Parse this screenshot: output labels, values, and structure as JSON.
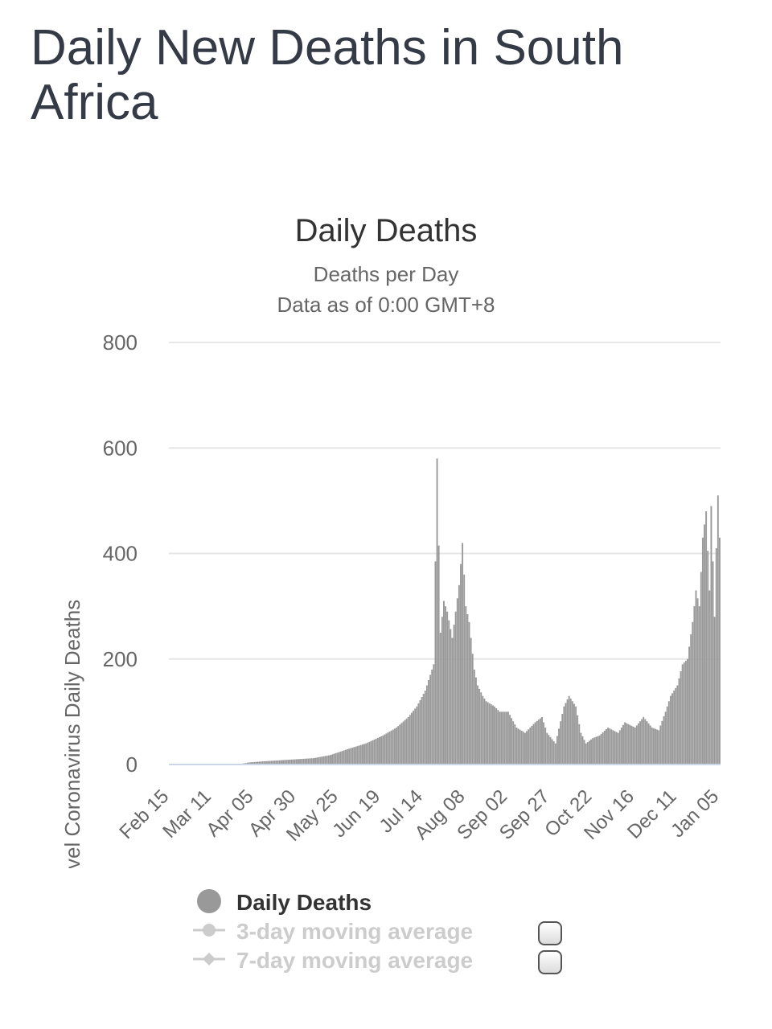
{
  "page": {
    "title": "Daily New Deaths in South Africa"
  },
  "legend": {
    "daily_label": "Daily Deaths",
    "ma3_label": "3-day moving average",
    "ma7_label": "7-day moving average"
  },
  "colors": {
    "bars": "#999999",
    "grid": "#e6e6e6",
    "axis_line": "#ccd6eb",
    "title": "#343a46"
  },
  "chart_data": {
    "type": "bar",
    "title": "Daily Deaths",
    "subtitle": [
      "Deaths per Day",
      "Data as of 0:00 GMT+8"
    ],
    "ylabel": "Novel Coronavirus Daily Deaths",
    "xlabel": "",
    "ylim": [
      0,
      800
    ],
    "y_ticks": [
      0,
      200,
      400,
      600,
      800
    ],
    "x_tick_labels": [
      "Feb 15",
      "Mar 11",
      "Apr 05",
      "Apr 30",
      "May 25",
      "Jun 19",
      "Jul 14",
      "Aug 08",
      "Sep 02",
      "Sep 27",
      "Oct 22",
      "Nov 16",
      "Dec 11",
      "Jan 05"
    ],
    "x_tick_dates": [
      "2020-02-15",
      "2020-03-11",
      "2020-04-05",
      "2020-04-30",
      "2020-05-25",
      "2020-06-19",
      "2020-07-14",
      "2020-08-08",
      "2020-09-02",
      "2020-09-27",
      "2020-10-22",
      "2020-11-16",
      "2020-12-11",
      "2021-01-05"
    ],
    "x_range": [
      "2020-02-15",
      "2021-01-05"
    ],
    "grid": true,
    "legend_position": "bottom",
    "series": [
      {
        "name": "Daily Deaths",
        "period_start": "2020-02-15",
        "period_end": "2021-01-05",
        "anchor_dates": [
          "2020-02-15",
          "2020-03-26",
          "2020-04-02",
          "2020-04-10",
          "2020-04-20",
          "2020-04-30",
          "2020-05-10",
          "2020-05-20",
          "2020-05-31",
          "2020-06-10",
          "2020-06-20",
          "2020-06-28",
          "2020-07-05",
          "2020-07-10",
          "2020-07-15",
          "2020-07-20",
          "2020-07-22",
          "2020-07-24",
          "2020-07-26",
          "2020-07-28",
          "2020-07-31",
          "2020-08-04",
          "2020-08-06",
          "2020-08-08",
          "2020-08-10",
          "2020-08-13",
          "2020-08-15",
          "2020-08-18",
          "2020-08-20",
          "2020-08-25",
          "2020-08-28",
          "2020-09-02",
          "2020-09-07",
          "2020-09-12",
          "2020-09-18",
          "2020-09-22",
          "2020-09-25",
          "2020-09-30",
          "2020-10-05",
          "2020-10-08",
          "2020-10-12",
          "2020-10-15",
          "2020-10-18",
          "2020-10-22",
          "2020-10-26",
          "2020-10-31",
          "2020-11-06",
          "2020-11-10",
          "2020-11-16",
          "2020-11-21",
          "2020-11-26",
          "2020-11-30",
          "2020-12-04",
          "2020-12-07",
          "2020-12-11",
          "2020-12-14",
          "2020-12-17",
          "2020-12-20",
          "2020-12-22",
          "2020-12-24",
          "2020-12-26",
          "2020-12-28",
          "2020-12-30",
          "2020-12-31",
          "2021-01-02",
          "2021-01-03",
          "2021-01-04",
          "2021-01-05"
        ],
        "anchor_values": [
          0,
          0,
          4,
          6,
          8,
          10,
          12,
          18,
          30,
          40,
          55,
          70,
          90,
          110,
          140,
          190,
          580,
          250,
          310,
          290,
          240,
          340,
          420,
          300,
          270,
          180,
          150,
          130,
          120,
          110,
          100,
          100,
          70,
          60,
          80,
          90,
          60,
          40,
          110,
          130,
          110,
          60,
          40,
          50,
          55,
          70,
          60,
          80,
          70,
          90,
          70,
          65,
          100,
          130,
          150,
          190,
          200,
          270,
          330,
          300,
          430,
          480,
          330,
          490,
          280,
          410,
          510,
          430
        ]
      },
      {
        "name": "3-day moving average",
        "visible": false
      },
      {
        "name": "7-day moving average",
        "visible": false
      }
    ]
  }
}
